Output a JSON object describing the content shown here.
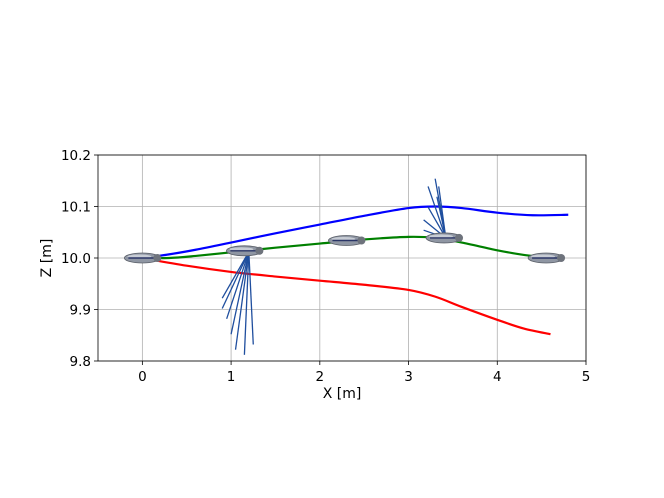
{
  "chart_data": {
    "type": "line",
    "xlabel": "X [m]",
    "ylabel": "Z [m]",
    "xlim": [
      -0.5,
      5
    ],
    "ylim": [
      9.8,
      10.2
    ],
    "xticks": [
      0,
      1,
      2,
      3,
      4,
      5
    ],
    "yticks": [
      9.8,
      9.9,
      10.0,
      10.1,
      10.2
    ],
    "xtick_labels": [
      "0",
      "1",
      "2",
      "3",
      "4",
      "5"
    ],
    "ytick_labels": [
      "9.8",
      "9.9",
      "10.0",
      "10.1",
      "10.2"
    ],
    "grid": true,
    "series": [
      {
        "color": "#0000ff",
        "x": [
          0.0,
          0.3,
          0.6,
          1.0,
          1.5,
          2.0,
          2.5,
          3.0,
          3.3,
          3.6,
          4.0,
          4.4,
          4.8
        ],
        "y": [
          10.0,
          10.007,
          10.016,
          10.03,
          10.048,
          10.065,
          10.082,
          10.097,
          10.1,
          10.097,
          10.088,
          10.083,
          10.084
        ]
      },
      {
        "color": "#008000",
        "x": [
          0.0,
          0.3,
          0.6,
          1.0,
          1.5,
          2.0,
          2.5,
          3.0,
          3.3,
          3.6,
          4.0,
          4.3,
          4.6
        ],
        "y": [
          10.0,
          10.0,
          10.004,
          10.011,
          10.02,
          10.028,
          10.036,
          10.041,
          10.039,
          10.03,
          10.015,
          10.006,
          10.0
        ]
      },
      {
        "color": "#ff0000",
        "x": [
          0.0,
          0.5,
          1.0,
          1.5,
          2.0,
          2.5,
          3.0,
          3.3,
          3.6,
          4.0,
          4.3,
          4.6
        ],
        "y": [
          10.0,
          9.985,
          9.973,
          9.964,
          9.956,
          9.948,
          9.938,
          9.925,
          9.905,
          9.88,
          9.863,
          9.852
        ]
      }
    ],
    "vehicles": [
      {
        "x": 0.0,
        "y": 10.0
      },
      {
        "x": 1.15,
        "y": 10.014
      },
      {
        "x": 2.3,
        "y": 10.034
      },
      {
        "x": 3.4,
        "y": 10.039
      },
      {
        "x": 4.55,
        "y": 10.0
      }
    ],
    "force_vectors": [
      {
        "x": 1.2,
        "y": 10.012,
        "dirs": [
          [
            -0.3,
            -0.09
          ],
          [
            -0.3,
            -0.11
          ],
          [
            -0.25,
            -0.13
          ],
          [
            -0.2,
            -0.16
          ],
          [
            -0.15,
            -0.19
          ],
          [
            -0.05,
            -0.2
          ],
          [
            0.05,
            -0.18
          ]
        ],
        "color": "#1f4e9e"
      },
      {
        "x": 3.42,
        "y": 10.039,
        "dirs": [
          [
            -0.25,
            0.015
          ],
          [
            -0.25,
            0.035
          ],
          [
            -0.2,
            0.06
          ],
          [
            -0.1,
            0.08
          ],
          [
            -0.08,
            0.1
          ],
          [
            -0.12,
            0.115
          ],
          [
            -0.2,
            0.1
          ]
        ],
        "color": "#1f4e9e"
      }
    ]
  }
}
